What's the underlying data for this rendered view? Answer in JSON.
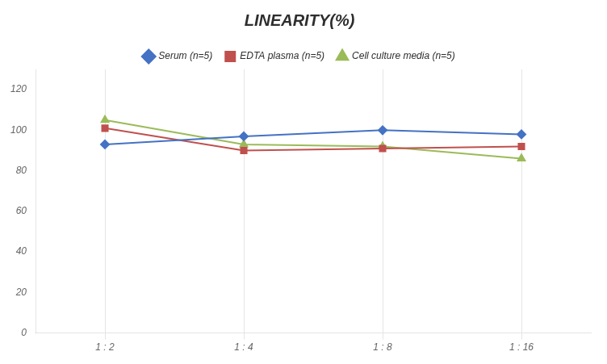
{
  "chart_data": {
    "type": "line",
    "title": "LINEARITY(%)",
    "categories": [
      "1 : 2",
      "1 : 4",
      "1 : 8",
      "1 : 16"
    ],
    "series": [
      {
        "name": "Serum (n=5)",
        "color": "#4472C4",
        "marker": "diamond",
        "values": [
          93,
          97,
          100,
          98
        ]
      },
      {
        "name": "EDTA plasma (n=5)",
        "color": "#C0504D",
        "marker": "square",
        "values": [
          101,
          90,
          91,
          92
        ]
      },
      {
        "name": "Cell culture media (n=5)",
        "color": "#9BBB59",
        "marker": "triangle",
        "values": [
          105,
          93,
          92,
          86
        ]
      }
    ],
    "ylim": [
      0,
      130
    ],
    "yticks": [
      0,
      20,
      40,
      60,
      80,
      100,
      120
    ],
    "grid": "x",
    "legend": "top"
  }
}
